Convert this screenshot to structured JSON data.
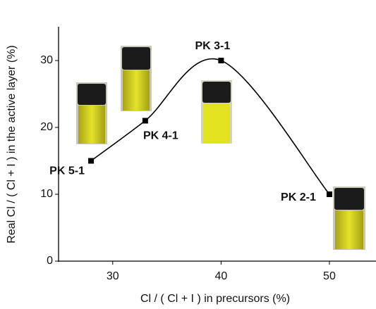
{
  "chart_data": {
    "type": "line",
    "x_label": "Cl / ( Cl + I ) in precursors (%)",
    "y_label": "Real Cl / ( Cl + I ) in the active layer (%)",
    "x": [
      28,
      33,
      40,
      50
    ],
    "values": [
      15,
      21,
      30,
      10
    ],
    "labels": [
      "PK 5-1",
      "PK 4-1",
      "PK 3-1",
      "PK 2-1"
    ],
    "color": "#000000",
    "xlim": [
      25,
      54.3
    ],
    "xticks": [
      30,
      40,
      50
    ],
    "ylim": [
      0,
      35
    ],
    "yticks": [
      0,
      10,
      20,
      30
    ]
  }
}
